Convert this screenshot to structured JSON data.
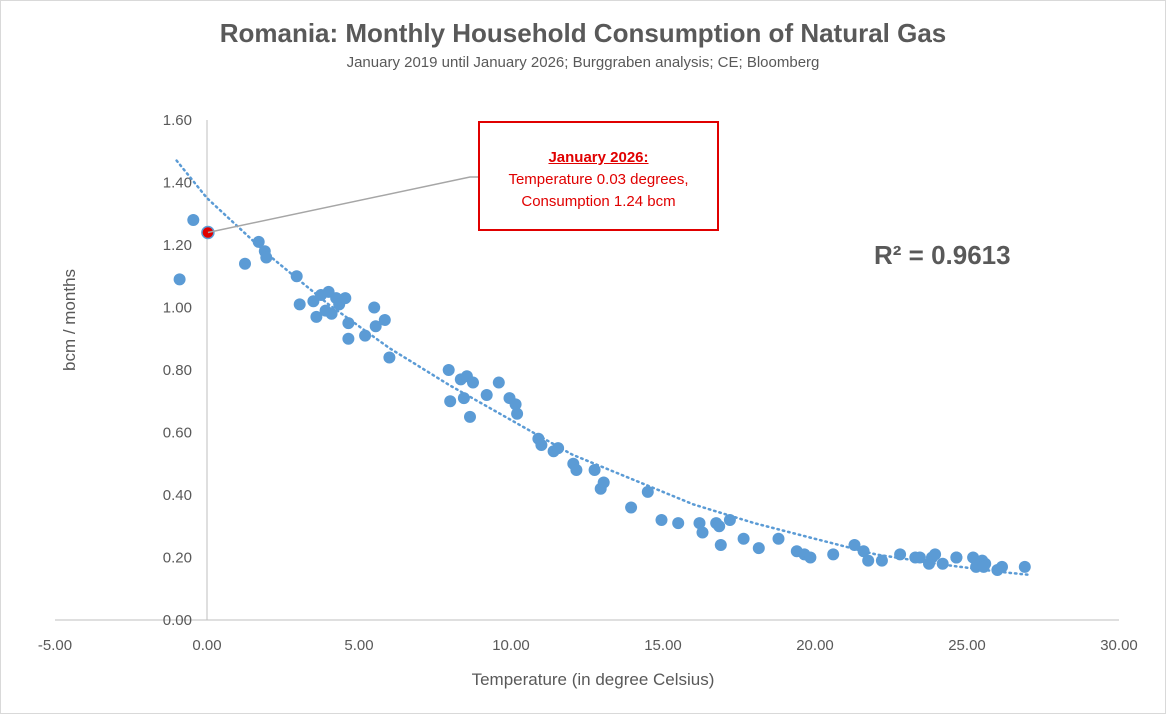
{
  "chart_data": {
    "type": "scatter",
    "title": "Romania:  Monthly Household Consumption of Natural Gas",
    "subtitle": "January 2019 until January 2026; Burggraben analysis; CE; Bloomberg",
    "xlabel": "Temperature (in degree Celsius)",
    "ylabel": "bcm / months",
    "xlim": [
      -5,
      30
    ],
    "ylim": [
      0,
      1.6
    ],
    "xticks": [
      -5,
      0,
      5,
      10,
      15,
      20,
      25,
      30
    ],
    "xtick_labels": [
      "-5.00",
      "0.00",
      "5.00",
      "10.00",
      "15.00",
      "20.00",
      "25.00",
      "30.00"
    ],
    "yticks": [
      0,
      0.2,
      0.4,
      0.6,
      0.8,
      1.0,
      1.2,
      1.4,
      1.6
    ],
    "ytick_labels": [
      "0.00",
      "0.20",
      "0.40",
      "0.60",
      "0.80",
      "1.00",
      "1.20",
      "1.40",
      "1.60"
    ],
    "grid": false,
    "series": [
      {
        "name": "Monthly observations",
        "color": "#5b9bd5",
        "points": [
          [
            -0.9,
            1.09
          ],
          [
            -0.45,
            1.28
          ],
          [
            0.03,
            1.24
          ],
          [
            1.25,
            1.14
          ],
          [
            1.7,
            1.21
          ],
          [
            1.9,
            1.18
          ],
          [
            1.95,
            1.16
          ],
          [
            2.95,
            1.1
          ],
          [
            3.05,
            1.01
          ],
          [
            3.5,
            1.02
          ],
          [
            3.6,
            0.97
          ],
          [
            3.75,
            1.04
          ],
          [
            3.9,
            0.99
          ],
          [
            4.0,
            1.05
          ],
          [
            4.1,
            0.98
          ],
          [
            4.25,
            1.03
          ],
          [
            4.35,
            1.01
          ],
          [
            4.55,
            1.03
          ],
          [
            4.65,
            0.95
          ],
          [
            4.65,
            0.9
          ],
          [
            5.2,
            0.91
          ],
          [
            5.5,
            1.0
          ],
          [
            5.55,
            0.94
          ],
          [
            5.85,
            0.96
          ],
          [
            6.0,
            0.84
          ],
          [
            7.95,
            0.8
          ],
          [
            8.0,
            0.7
          ],
          [
            8.35,
            0.77
          ],
          [
            8.45,
            0.71
          ],
          [
            8.55,
            0.78
          ],
          [
            8.65,
            0.65
          ],
          [
            8.75,
            0.76
          ],
          [
            9.2,
            0.72
          ],
          [
            9.6,
            0.76
          ],
          [
            9.95,
            0.71
          ],
          [
            10.15,
            0.69
          ],
          [
            10.2,
            0.66
          ],
          [
            10.9,
            0.58
          ],
          [
            11.0,
            0.56
          ],
          [
            11.4,
            0.54
          ],
          [
            11.55,
            0.55
          ],
          [
            12.05,
            0.5
          ],
          [
            12.15,
            0.48
          ],
          [
            12.75,
            0.48
          ],
          [
            12.95,
            0.42
          ],
          [
            13.05,
            0.44
          ],
          [
            13.95,
            0.36
          ],
          [
            14.5,
            0.41
          ],
          [
            14.95,
            0.32
          ],
          [
            15.5,
            0.31
          ],
          [
            16.2,
            0.31
          ],
          [
            16.3,
            0.28
          ],
          [
            16.75,
            0.31
          ],
          [
            16.85,
            0.3
          ],
          [
            16.9,
            0.24
          ],
          [
            17.2,
            0.32
          ],
          [
            17.65,
            0.26
          ],
          [
            18.15,
            0.23
          ],
          [
            18.8,
            0.26
          ],
          [
            19.4,
            0.22
          ],
          [
            19.65,
            0.21
          ],
          [
            19.85,
            0.2
          ],
          [
            20.6,
            0.21
          ],
          [
            21.3,
            0.24
          ],
          [
            21.6,
            0.22
          ],
          [
            21.75,
            0.19
          ],
          [
            22.2,
            0.19
          ],
          [
            22.8,
            0.21
          ],
          [
            23.3,
            0.2
          ],
          [
            23.45,
            0.2
          ],
          [
            23.75,
            0.18
          ],
          [
            23.85,
            0.2
          ],
          [
            23.95,
            0.21
          ],
          [
            24.2,
            0.18
          ],
          [
            24.65,
            0.2
          ],
          [
            24.65,
            0.2
          ],
          [
            25.2,
            0.2
          ],
          [
            25.3,
            0.17
          ],
          [
            25.5,
            0.19
          ],
          [
            25.6,
            0.18
          ],
          [
            25.55,
            0.17
          ],
          [
            26.0,
            0.16
          ],
          [
            26.15,
            0.17
          ],
          [
            26.9,
            0.17
          ]
        ]
      }
    ],
    "trendline": {
      "style": "dotted",
      "color": "#5b9bd5",
      "x": [
        -1.0,
        0,
        2,
        4,
        6,
        8,
        10,
        12,
        14,
        16,
        18,
        20,
        22,
        24,
        26,
        27
      ],
      "y": [
        1.47,
        1.35,
        1.17,
        1.01,
        0.87,
        0.75,
        0.64,
        0.53,
        0.45,
        0.37,
        0.31,
        0.26,
        0.21,
        0.18,
        0.155,
        0.145
      ]
    },
    "highlight": {
      "x": 0.03,
      "y": 1.24,
      "color": "#e00000"
    },
    "annotation": {
      "heading": "January 2026:",
      "line1": "Temperature 0.03 degrees,",
      "line2": "Consumption 1.24 bcm"
    },
    "r_squared_label": "R² = 0.9613"
  }
}
